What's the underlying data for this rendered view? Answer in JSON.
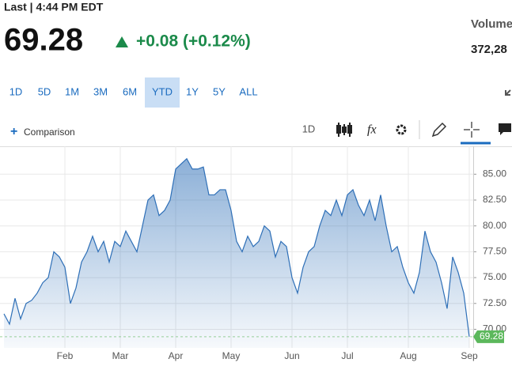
{
  "quote": {
    "time_label": "Last | 4:44 PM EDT",
    "price": "69.28",
    "change": "+0.08 (+0.12%)",
    "volume_label": "Volume",
    "volume": "372,28"
  },
  "ranges": [
    "1D",
    "5D",
    "1M",
    "3M",
    "6M",
    "YTD",
    "1Y",
    "5Y",
    "ALL"
  ],
  "selected_range": "YTD",
  "toolbar": {
    "comparison": "Comparison",
    "interval": "1D",
    "fx": "fx"
  },
  "chart_data": {
    "type": "area",
    "color": "#2e6fb7",
    "categories": [
      null,
      null,
      null,
      null,
      null,
      null,
      null,
      null,
      null,
      null,
      null,
      "Feb",
      null,
      null,
      null,
      null,
      null,
      null,
      null,
      null,
      null,
      "Mar",
      null,
      null,
      null,
      null,
      null,
      null,
      null,
      null,
      null,
      "Apr",
      null,
      null,
      null,
      null,
      null,
      null,
      null,
      null,
      null,
      "May",
      null,
      null,
      null,
      null,
      null,
      null,
      null,
      null,
      null,
      null,
      "Jun",
      null,
      null,
      null,
      null,
      null,
      null,
      null,
      null,
      null,
      "Jul",
      null,
      null,
      null,
      null,
      null,
      null,
      null,
      null,
      null,
      null,
      "Aug",
      null,
      null,
      null,
      null,
      null,
      null,
      null,
      null,
      null,
      null,
      "Sep"
    ],
    "values": [
      71.5,
      70.5,
      73,
      71,
      72.5,
      72.8,
      73.5,
      74.5,
      75,
      77.5,
      77,
      76,
      72.5,
      74,
      76.5,
      77.5,
      79,
      77.5,
      78.5,
      76.5,
      78.5,
      78,
      79.5,
      78.5,
      77.5,
      80,
      82.5,
      83,
      81,
      81.5,
      82.5,
      85.5,
      86,
      86.5,
      85.5,
      85.5,
      85.7,
      83,
      83,
      83.5,
      83.5,
      81.5,
      78.5,
      77.5,
      79,
      78,
      78.5,
      80,
      79.5,
      77,
      78.5,
      78,
      75,
      73.5,
      76,
      77.5,
      78,
      80,
      81.5,
      81,
      82.5,
      81,
      83,
      83.5,
      82,
      81,
      82.5,
      80.5,
      83,
      80,
      77.5,
      78,
      76,
      74.5,
      73.5,
      75.5,
      79.5,
      77.5,
      76.5,
      74.5,
      72,
      77,
      75.5,
      73.5,
      69.28
    ],
    "ylim": [
      68.2,
      87.7
    ],
    "yticks": [
      {
        "value": 70,
        "label": "70.00"
      },
      {
        "value": 72.5,
        "label": "72.50"
      },
      {
        "value": 75,
        "label": "75.00"
      },
      {
        "value": 77.5,
        "label": "77.50"
      },
      {
        "value": 80,
        "label": "80.00"
      },
      {
        "value": 82.5,
        "label": "82.50"
      },
      {
        "value": 85,
        "label": "85.00"
      }
    ],
    "grid": true,
    "last_color": "#5cb85c"
  }
}
